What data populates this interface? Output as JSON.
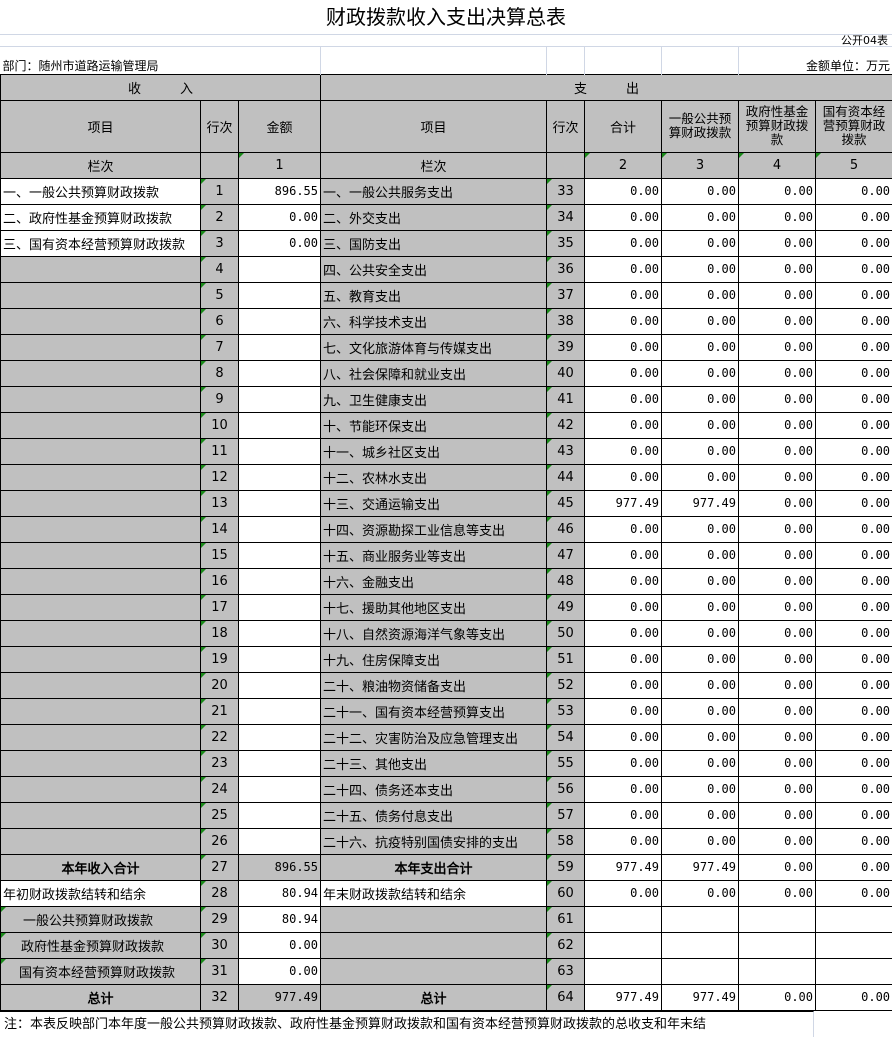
{
  "title": "财政拨款收入支出决算总表",
  "form_no": "公开04表",
  "department": "部门：随州市道路运输管理局",
  "unit": "金额单位：万元",
  "header": {
    "income": "收　　　入",
    "expense": "支　　　出",
    "item": "项目",
    "row_no": "行次",
    "amount": "金额",
    "total": "合计",
    "col3": "一般公共预算财政拨款",
    "col4": "政府性基金预算财政拨款",
    "col5": "国有资本经营预算财政拨款",
    "lanci": "栏次",
    "c1": "1",
    "c2": "2",
    "c3": "3",
    "c4": "4",
    "c5": "5"
  },
  "rows": [
    {
      "in_item": "一、一般公共预算财政拨款",
      "in_no": "1",
      "in_amt": "896.55",
      "ex_item": "一、一般公共服务支出",
      "ex_no": "33",
      "v": [
        "0.00",
        "0.00",
        "0.00",
        "0.00"
      ]
    },
    {
      "in_item": "二、政府性基金预算财政拨款",
      "in_no": "2",
      "in_amt": "0.00",
      "ex_item": "二、外交支出",
      "ex_no": "34",
      "v": [
        "0.00",
        "0.00",
        "0.00",
        "0.00"
      ]
    },
    {
      "in_item": "三、国有资本经营预算财政拨款",
      "in_no": "3",
      "in_amt": "0.00",
      "ex_item": "三、国防支出",
      "ex_no": "35",
      "v": [
        "0.00",
        "0.00",
        "0.00",
        "0.00"
      ]
    },
    {
      "in_item": "",
      "in_no": "4",
      "in_amt": "",
      "ex_item": "四、公共安全支出",
      "ex_no": "36",
      "v": [
        "0.00",
        "0.00",
        "0.00",
        "0.00"
      ]
    },
    {
      "in_item": "",
      "in_no": "5",
      "in_amt": "",
      "ex_item": "五、教育支出",
      "ex_no": "37",
      "v": [
        "0.00",
        "0.00",
        "0.00",
        "0.00"
      ]
    },
    {
      "in_item": "",
      "in_no": "6",
      "in_amt": "",
      "ex_item": "六、科学技术支出",
      "ex_no": "38",
      "v": [
        "0.00",
        "0.00",
        "0.00",
        "0.00"
      ]
    },
    {
      "in_item": "",
      "in_no": "7",
      "in_amt": "",
      "ex_item": "七、文化旅游体育与传媒支出",
      "ex_no": "39",
      "v": [
        "0.00",
        "0.00",
        "0.00",
        "0.00"
      ]
    },
    {
      "in_item": "",
      "in_no": "8",
      "in_amt": "",
      "ex_item": "八、社会保障和就业支出",
      "ex_no": "40",
      "v": [
        "0.00",
        "0.00",
        "0.00",
        "0.00"
      ]
    },
    {
      "in_item": "",
      "in_no": "9",
      "in_amt": "",
      "ex_item": "九、卫生健康支出",
      "ex_no": "41",
      "v": [
        "0.00",
        "0.00",
        "0.00",
        "0.00"
      ]
    },
    {
      "in_item": "",
      "in_no": "10",
      "in_amt": "",
      "ex_item": "十、节能环保支出",
      "ex_no": "42",
      "v": [
        "0.00",
        "0.00",
        "0.00",
        "0.00"
      ]
    },
    {
      "in_item": "",
      "in_no": "11",
      "in_amt": "",
      "ex_item": "十一、城乡社区支出",
      "ex_no": "43",
      "v": [
        "0.00",
        "0.00",
        "0.00",
        "0.00"
      ]
    },
    {
      "in_item": "",
      "in_no": "12",
      "in_amt": "",
      "ex_item": "十二、农林水支出",
      "ex_no": "44",
      "v": [
        "0.00",
        "0.00",
        "0.00",
        "0.00"
      ]
    },
    {
      "in_item": "",
      "in_no": "13",
      "in_amt": "",
      "ex_item": "十三、交通运输支出",
      "ex_no": "45",
      "v": [
        "977.49",
        "977.49",
        "0.00",
        "0.00"
      ]
    },
    {
      "in_item": "",
      "in_no": "14",
      "in_amt": "",
      "ex_item": "十四、资源勘探工业信息等支出",
      "ex_no": "46",
      "v": [
        "0.00",
        "0.00",
        "0.00",
        "0.00"
      ]
    },
    {
      "in_item": "",
      "in_no": "15",
      "in_amt": "",
      "ex_item": "十五、商业服务业等支出",
      "ex_no": "47",
      "v": [
        "0.00",
        "0.00",
        "0.00",
        "0.00"
      ]
    },
    {
      "in_item": "",
      "in_no": "16",
      "in_amt": "",
      "ex_item": "十六、金融支出",
      "ex_no": "48",
      "v": [
        "0.00",
        "0.00",
        "0.00",
        "0.00"
      ]
    },
    {
      "in_item": "",
      "in_no": "17",
      "in_amt": "",
      "ex_item": "十七、援助其他地区支出",
      "ex_no": "49",
      "v": [
        "0.00",
        "0.00",
        "0.00",
        "0.00"
      ]
    },
    {
      "in_item": "",
      "in_no": "18",
      "in_amt": "",
      "ex_item": "十八、自然资源海洋气象等支出",
      "ex_no": "50",
      "v": [
        "0.00",
        "0.00",
        "0.00",
        "0.00"
      ]
    },
    {
      "in_item": "",
      "in_no": "19",
      "in_amt": "",
      "ex_item": "十九、住房保障支出",
      "ex_no": "51",
      "v": [
        "0.00",
        "0.00",
        "0.00",
        "0.00"
      ]
    },
    {
      "in_item": "",
      "in_no": "20",
      "in_amt": "",
      "ex_item": "二十、粮油物资储备支出",
      "ex_no": "52",
      "v": [
        "0.00",
        "0.00",
        "0.00",
        "0.00"
      ]
    },
    {
      "in_item": "",
      "in_no": "21",
      "in_amt": "",
      "ex_item": "二十一、国有资本经营预算支出",
      "ex_no": "53",
      "v": [
        "0.00",
        "0.00",
        "0.00",
        "0.00"
      ]
    },
    {
      "in_item": "",
      "in_no": "22",
      "in_amt": "",
      "ex_item": "二十二、灾害防治及应急管理支出",
      "ex_no": "54",
      "v": [
        "0.00",
        "0.00",
        "0.00",
        "0.00"
      ]
    },
    {
      "in_item": "",
      "in_no": "23",
      "in_amt": "",
      "ex_item": "二十三、其他支出",
      "ex_no": "55",
      "v": [
        "0.00",
        "0.00",
        "0.00",
        "0.00"
      ]
    },
    {
      "in_item": "",
      "in_no": "24",
      "in_amt": "",
      "ex_item": "二十四、债务还本支出",
      "ex_no": "56",
      "v": [
        "0.00",
        "0.00",
        "0.00",
        "0.00"
      ]
    },
    {
      "in_item": "",
      "in_no": "25",
      "in_amt": "",
      "ex_item": "二十五、债务付息支出",
      "ex_no": "57",
      "v": [
        "0.00",
        "0.00",
        "0.00",
        "0.00"
      ]
    },
    {
      "in_item": "",
      "in_no": "26",
      "in_amt": "",
      "ex_item": "二十六、抗疫特别国债安排的支出",
      "ex_no": "58",
      "v": [
        "0.00",
        "0.00",
        "0.00",
        "0.00"
      ]
    },
    {
      "in_item": "本年收入合计",
      "in_no": "27",
      "in_amt": "896.55",
      "ex_item": "本年支出合计",
      "ex_no": "59",
      "v": [
        "977.49",
        "977.49",
        "0.00",
        "0.00"
      ],
      "bold": true
    },
    {
      "in_item": "年初财政拨款结转和结余",
      "in_no": "28",
      "in_amt": "80.94",
      "ex_item": "年末财政拨款结转和结余",
      "ex_no": "60",
      "v": [
        "0.00",
        "0.00",
        "0.00",
        "0.00"
      ],
      "white_item": true
    },
    {
      "in_item": "一般公共预算财政拨款",
      "in_no": "29",
      "in_amt": "80.94",
      "ex_item": "",
      "ex_no": "61",
      "v": [
        "",
        "",
        "",
        ""
      ],
      "indent": true
    },
    {
      "in_item": "政府性基金预算财政拨款",
      "in_no": "30",
      "in_amt": "0.00",
      "ex_item": "",
      "ex_no": "62",
      "v": [
        "",
        "",
        "",
        ""
      ],
      "indent": true
    },
    {
      "in_item": "国有资本经营预算财政拨款",
      "in_no": "31",
      "in_amt": "0.00",
      "ex_item": "",
      "ex_no": "63",
      "v": [
        "",
        "",
        "",
        ""
      ],
      "indent": true
    },
    {
      "in_item": "总计",
      "in_no": "32",
      "in_amt": "977.49",
      "ex_item": "总计",
      "ex_no": "64",
      "v": [
        "977.49",
        "977.49",
        "0.00",
        "0.00"
      ],
      "bold": true
    }
  ],
  "footnote": "注：本表反映部门本年度一般公共预算财政拨款、政府性基金预算财政拨款和国有资本经营预算财政拨款的总收支和年末结",
  "colors": {
    "header_bg": "#c0c0c0",
    "marker": "#1a8a1a"
  }
}
